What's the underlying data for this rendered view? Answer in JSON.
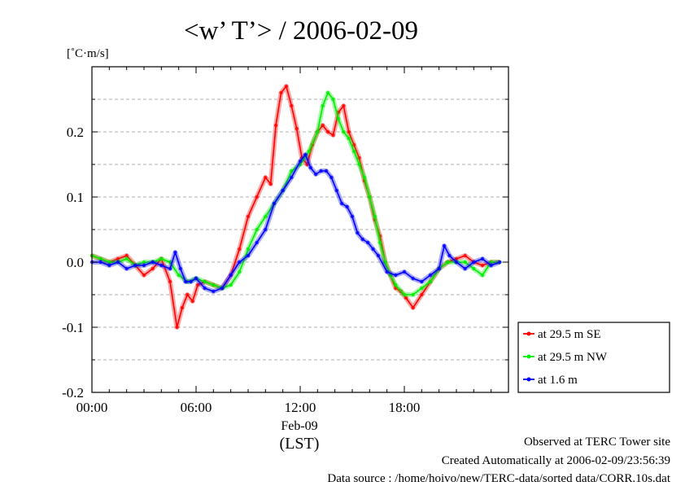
{
  "chart_data": {
    "type": "line",
    "title": "<w’ T’> / 2006-02-09",
    "ylabel": "[˚C·m/s]",
    "xlabel": "(LST)",
    "date_label": "Feb-09",
    "x_unit": "hour of day (LST)",
    "xlim": [
      0,
      24
    ],
    "ylim": [
      -0.2,
      0.3
    ],
    "x_ticks": [
      {
        "value": 0,
        "label": "00:00"
      },
      {
        "value": 6,
        "label": "06:00"
      },
      {
        "value": 12,
        "label": "12:00"
      },
      {
        "value": 18,
        "label": "18:00"
      }
    ],
    "y_ticks": [
      {
        "value": -0.2,
        "label": "-0.2"
      },
      {
        "value": -0.1,
        "label": "-0.1"
      },
      {
        "value": 0.0,
        "label": "0.0"
      },
      {
        "value": 0.1,
        "label": "0.1"
      },
      {
        "value": 0.2,
        "label": "0.2"
      }
    ],
    "grid": "horizontal dashed",
    "legend_position": "right, lower",
    "series": [
      {
        "name": "at 29.5 m SE",
        "color": "#ff0000",
        "x": [
          0,
          0.5,
          1,
          1.5,
          2,
          2.5,
          3,
          3.5,
          4,
          4.5,
          4.9,
          5.2,
          5.5,
          5.8,
          6.1,
          6.5,
          7,
          7.5,
          8,
          8.5,
          9,
          9.5,
          10,
          10.3,
          10.6,
          10.9,
          11.2,
          11.5,
          11.8,
          12.1,
          12.4,
          12.7,
          13,
          13.3,
          13.6,
          13.9,
          14.2,
          14.5,
          14.8,
          15.1,
          15.4,
          15.7,
          16,
          16.3,
          16.6,
          16.9,
          17.2,
          17.5,
          17.8,
          18.1,
          18.5,
          19,
          19.5,
          20,
          20.5,
          21,
          21.5,
          22,
          22.5,
          23,
          23.5
        ],
        "y": [
          0.01,
          0.005,
          0.0,
          0.005,
          0.01,
          -0.005,
          -0.02,
          -0.01,
          0.005,
          -0.03,
          -0.1,
          -0.07,
          -0.05,
          -0.06,
          -0.035,
          -0.03,
          -0.035,
          -0.04,
          -0.02,
          0.02,
          0.07,
          0.1,
          0.13,
          0.12,
          0.21,
          0.26,
          0.27,
          0.24,
          0.205,
          0.16,
          0.15,
          0.18,
          0.2,
          0.21,
          0.2,
          0.195,
          0.23,
          0.24,
          0.2,
          0.18,
          0.16,
          0.125,
          0.1,
          0.065,
          0.04,
          0.0,
          -0.02,
          -0.04,
          -0.045,
          -0.055,
          -0.07,
          -0.05,
          -0.03,
          -0.01,
          0.0,
          0.005,
          0.01,
          0.0,
          -0.005,
          0.0,
          0.0
        ]
      },
      {
        "name": "at 29.5 m NW",
        "color": "#00ee00",
        "x": [
          0,
          0.5,
          1,
          1.5,
          2,
          2.5,
          3,
          3.5,
          4,
          4.5,
          5,
          5.5,
          6,
          6.5,
          7,
          7.5,
          8,
          8.5,
          9,
          9.5,
          10,
          10.5,
          11,
          11.5,
          12,
          12.5,
          13,
          13.3,
          13.6,
          13.9,
          14.2,
          14.5,
          14.8,
          15.1,
          15.4,
          15.7,
          16,
          16.3,
          16.6,
          16.9,
          17.2,
          17.5,
          18,
          18.5,
          19,
          19.5,
          20,
          20.5,
          21,
          21.5,
          22,
          22.5,
          23,
          23.5
        ],
        "y": [
          0.01,
          0.005,
          0.0,
          0.0,
          0.005,
          -0.005,
          0.0,
          0.0,
          0.005,
          0.0,
          -0.02,
          -0.03,
          -0.025,
          -0.03,
          -0.035,
          -0.04,
          -0.035,
          -0.015,
          0.02,
          0.05,
          0.07,
          0.09,
          0.11,
          0.14,
          0.15,
          0.17,
          0.2,
          0.24,
          0.26,
          0.25,
          0.22,
          0.2,
          0.19,
          0.17,
          0.15,
          0.13,
          0.1,
          0.07,
          0.03,
          0.0,
          -0.02,
          -0.035,
          -0.05,
          -0.05,
          -0.04,
          -0.03,
          -0.01,
          0.0,
          0.0,
          0.0,
          -0.01,
          -0.02,
          0.0,
          0.0
        ]
      },
      {
        "name": "at 1.6 m",
        "color": "#0000ff",
        "x": [
          0,
          0.5,
          1,
          1.5,
          2,
          2.5,
          3,
          3.5,
          4,
          4.5,
          4.8,
          5.1,
          5.4,
          5.7,
          6,
          6.5,
          7,
          7.5,
          8,
          8.5,
          9,
          9.5,
          10,
          10.5,
          11,
          11.5,
          12,
          12.3,
          12.6,
          12.9,
          13.2,
          13.5,
          13.8,
          14.1,
          14.4,
          14.7,
          15,
          15.3,
          15.6,
          15.9,
          16.2,
          16.5,
          17,
          17.5,
          18,
          18.5,
          19,
          19.5,
          20,
          20.3,
          20.6,
          21,
          21.5,
          22,
          22.5,
          23,
          23.5
        ],
        "y": [
          0.0,
          0.0,
          -0.005,
          0.0,
          -0.01,
          -0.005,
          -0.005,
          0.0,
          -0.005,
          -0.01,
          0.015,
          -0.01,
          -0.03,
          -0.03,
          -0.025,
          -0.04,
          -0.045,
          -0.04,
          -0.02,
          0.0,
          0.01,
          0.03,
          0.05,
          0.09,
          0.11,
          0.13,
          0.155,
          0.165,
          0.145,
          0.135,
          0.14,
          0.14,
          0.13,
          0.11,
          0.09,
          0.085,
          0.07,
          0.045,
          0.035,
          0.03,
          0.02,
          0.01,
          -0.015,
          -0.02,
          -0.015,
          -0.025,
          -0.03,
          -0.02,
          -0.01,
          0.025,
          0.01,
          0.0,
          -0.01,
          0.0,
          0.005,
          -0.005,
          0.0
        ]
      }
    ]
  },
  "footer": {
    "line1": "Observed at TERC Tower site",
    "line2": "Created Automatically at 2006-02-09/23:56:39",
    "line3": "Data source : /home/hoivo/new/TERC-data/sorted  data/CORR.10s.dat"
  }
}
